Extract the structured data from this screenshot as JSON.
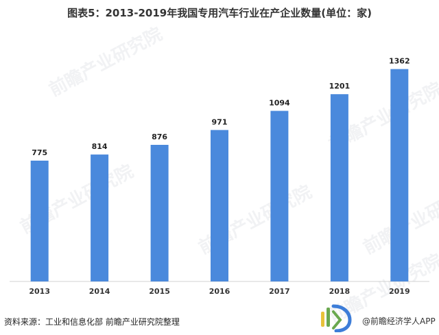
{
  "chart_data": {
    "type": "bar",
    "title": "图表5：2013-2019年我国专用汽车行业在产企业数量(单位：家)",
    "categories": [
      "2013",
      "2014",
      "2015",
      "2016",
      "2017",
      "2018",
      "2019"
    ],
    "values": [
      775,
      814,
      876,
      971,
      1094,
      1201,
      1362
    ],
    "ylim": [
      0,
      1400
    ],
    "xlabel": "",
    "ylabel": "",
    "bar_color": "#4a89dc",
    "axis_color": "#d0d0d0",
    "grid": false,
    "data_labels": true
  },
  "source_text": "资料来源：工业和信息化部 前瞻产业研究院整理",
  "logo": {
    "text": "@前瞻经济学人APP",
    "colors": [
      "#e8c23a",
      "#6aa84f",
      "#3d7dd8"
    ]
  },
  "watermark": {
    "text": "前瞻产业研究院",
    "color": "#c8cdd5"
  }
}
